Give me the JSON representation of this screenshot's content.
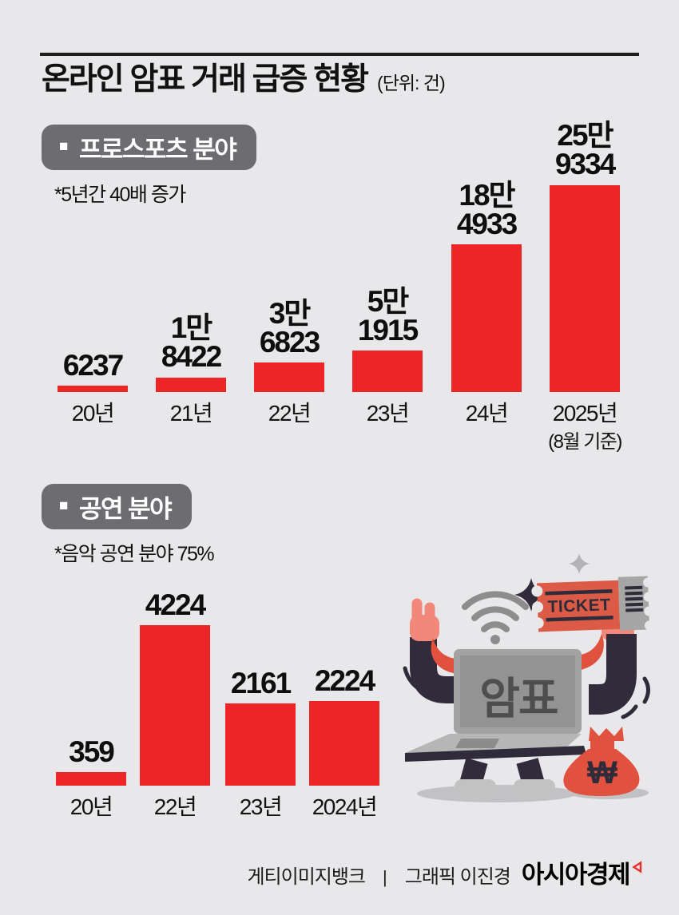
{
  "title": {
    "text": "온라인 암표 거래 급증 현황",
    "unit": "(단위: 건)"
  },
  "sections": [
    {
      "bullet": "■",
      "label": "프로스포츠 분야",
      "note": "*5년간 40배 증가"
    },
    {
      "bullet": "■",
      "label": "공연 분야",
      "note": "*음악 공연 분야 75%"
    }
  ],
  "chart_data": [
    {
      "type": "bar",
      "title": "프로스포츠 분야",
      "note": "*5년간 40배 증가",
      "unit": "건",
      "categories": [
        [
          "20년"
        ],
        [
          "21년"
        ],
        [
          "22년"
        ],
        [
          "23년"
        ],
        [
          "24년"
        ],
        [
          "2025년",
          "(8월 기준)"
        ]
      ],
      "values": [
        6237,
        18422,
        36823,
        51915,
        184933,
        259334
      ],
      "value_labels": [
        [
          "6237"
        ],
        [
          "1만",
          "8422"
        ],
        [
          "3만",
          "6823"
        ],
        [
          "5만",
          "1915"
        ],
        [
          "18만",
          "4933"
        ],
        [
          "25만",
          "9334"
        ]
      ],
      "bar_color": "#ee2527",
      "grid": false,
      "legend": false
    },
    {
      "type": "bar",
      "title": "공연 분야",
      "note": "*음악 공연 분야 75%",
      "unit": "건",
      "categories": [
        [
          "20년"
        ],
        [
          "22년"
        ],
        [
          "23년"
        ],
        [
          "2024년"
        ]
      ],
      "values": [
        359,
        4224,
        2161,
        2224
      ],
      "value_labels": [
        [
          "359"
        ],
        [
          "4224"
        ],
        [
          "2161"
        ],
        [
          "2224"
        ]
      ],
      "bar_color": "#ee2527",
      "grid": false,
      "legend": false
    }
  ],
  "illustration": {
    "laptop_text": "암표",
    "ticket_text": "TICKET",
    "money_symbol": "₩"
  },
  "footer": {
    "image_credit": "게티이미지뱅크",
    "divider": "|",
    "graphic_credit": "그래픽 이진경",
    "brand": "아시아경제"
  },
  "colors": {
    "background": "#e8e7e9",
    "bar": "#ee2527",
    "badge": "#6d6d71",
    "rule": "#1c1c1c",
    "illustration_red": "#e0513e",
    "illustration_navy": "#322b3c",
    "illustration_pink": "#f2887a",
    "brand_mark_red": "#e8312e"
  }
}
